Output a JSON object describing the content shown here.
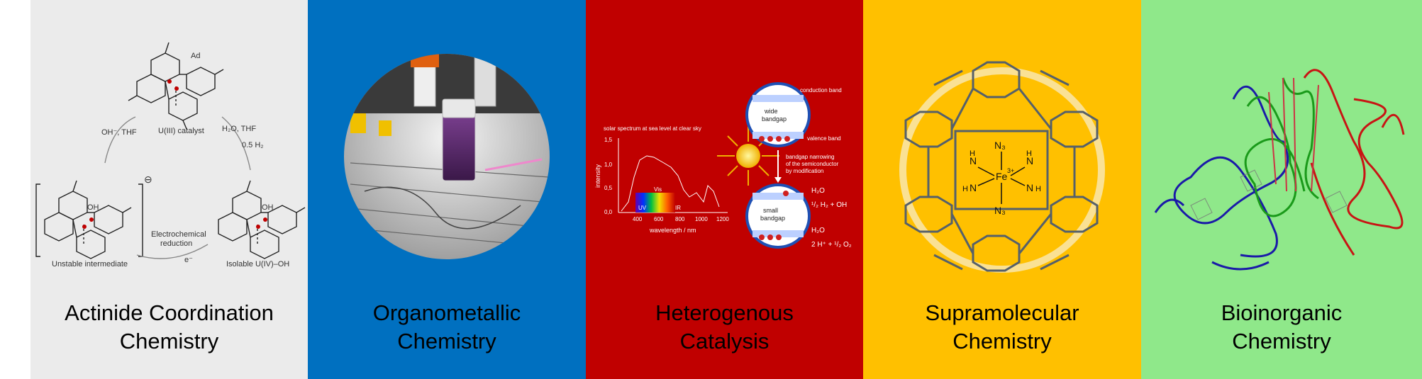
{
  "panels": [
    {
      "id": "actinide",
      "title_line1": "Actinide Coordination",
      "title_line2": "Chemistry",
      "color": "#ebebeb",
      "labels": {
        "ad": "Ad",
        "catalyst": "U(III) catalyst",
        "oh_thf": "OH⁻, THF",
        "h2o_thf": "H₂O, THF",
        "h2": "0.5 H₂",
        "electrochem": "Electrochemical",
        "reduction": "reduction",
        "eminus": "e⁻",
        "unstable": "Unstable intermediate",
        "isolable": "Isolable U(IV)–OH",
        "oh": "OH",
        "minus": "⊖"
      }
    },
    {
      "id": "organometallic",
      "title_line1": "Organometallic",
      "title_line2": "Chemistry",
      "color": "#0070c0"
    },
    {
      "id": "heterogenous",
      "title_line1": "Heterogenous",
      "title_line2": "Catalysis",
      "color": "#c00000",
      "labels": {
        "solar": "solar spectrum at sea level at clear sky",
        "intensity": "intensity",
        "wavelength": "wavelength / nm",
        "uv": "UV",
        "vis": "Vis",
        "ir": "IR",
        "conduction": "conduction band",
        "valence": "valence band",
        "wide": "wide",
        "bandgap": "bandgap",
        "small": "small",
        "narrow1": "bandgap narrowing",
        "narrow2": "of the semiconductor",
        "narrow3": "by modification",
        "h2o": "H₂O",
        "r1": "¹/₂ H₂ + OH",
        "r2": "2 H⁺ + ¹/₂ O₂",
        "yticks": [
          "1,5",
          "1,0",
          "0,5",
          "0,0"
        ],
        "xticks": [
          "400",
          "600",
          "800",
          "1000",
          "1200"
        ]
      }
    },
    {
      "id": "supramolecular",
      "title_line1": "Supramolecular",
      "title_line2": "Chemistry",
      "color": "#ffc000",
      "labels": {
        "n3": "N₃",
        "h": "H",
        "n": "N",
        "fe": "Fe",
        "fe_charge": "3+"
      }
    },
    {
      "id": "bioinorganic",
      "title_line1": "Bioinorganic",
      "title_line2": "Chemistry",
      "color": "#8fe88a"
    }
  ]
}
